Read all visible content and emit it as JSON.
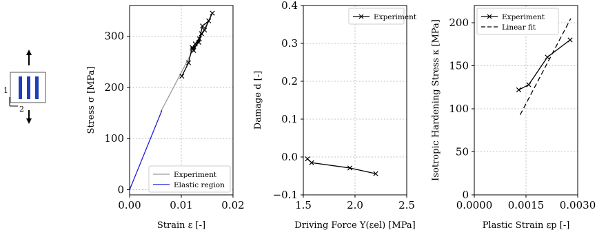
{
  "specimen": {
    "direction_1": "1",
    "direction_2": "2",
    "stripe_color": "#1f3fb8"
  },
  "chart_data": [
    {
      "type": "line",
      "xlabel": "Strain ε [-]",
      "ylabel": "Stress σ [MPa]",
      "xlim": [
        0,
        0.02
      ],
      "ylim": [
        -10,
        360
      ],
      "xticks": [
        0,
        0.01,
        0.02
      ],
      "xtick_labels": [
        "0.00",
        "0.01",
        "0.02"
      ],
      "yticks": [
        0,
        100,
        200,
        300
      ],
      "ytick_labels": [
        "0",
        "100",
        "200",
        "300"
      ],
      "grid": true,
      "legend": "bottom-right",
      "series": [
        {
          "name": "Experiment",
          "color": "#9a9a9a",
          "marker": "none",
          "x": [
            0.006,
            0.016
          ],
          "y": [
            152,
            345
          ]
        },
        {
          "name": "Elastic region",
          "color": "#1f1fd0",
          "marker": "none",
          "x": [
            0,
            0.00625
          ],
          "y": [
            0,
            155
          ]
        },
        {
          "name": "",
          "color": "#000000",
          "marker": "x",
          "x": [
            0.0101,
            0.0114,
            0.0121,
            0.0124,
            0.0135,
            0.0141,
            0.0153,
            0.016,
            0.0145,
            0.0127,
            0.0122,
            0.0134,
            0.0139
          ],
          "y": [
            222,
            248,
            278,
            272,
            295,
            320,
            330,
            345,
            312,
            285,
            275,
            288,
            305
          ]
        }
      ]
    },
    {
      "type": "line",
      "xlabel": "Driving Force Y(εel) [MPa]",
      "ylabel": "Damage d [-]",
      "xlim": [
        1.5,
        2.5
      ],
      "ylim": [
        -0.1,
        0.4
      ],
      "xticks": [
        1.5,
        2.0,
        2.5
      ],
      "xtick_labels": [
        "1.5",
        "2.0",
        "2.5"
      ],
      "yticks": [
        -0.1,
        0.0,
        0.1,
        0.2,
        0.3,
        0.4
      ],
      "ytick_labels": [
        "−0.1",
        "0.0",
        "0.1",
        "0.2",
        "0.3",
        "0.4"
      ],
      "grid": true,
      "legend": "top-right",
      "series": [
        {
          "name": "Experiment",
          "color": "#000000",
          "marker": "x",
          "x": [
            1.54,
            1.58,
            1.95,
            2.2
          ],
          "y": [
            -0.005,
            -0.015,
            -0.029,
            -0.044
          ]
        }
      ]
    },
    {
      "type": "line",
      "xlabel": "Plastic Strain εp [-]",
      "ylabel": "Isotropic Hardening Stress κ [MPa]",
      "xlim": [
        0,
        0.003
      ],
      "ylim": [
        0,
        220
      ],
      "xticks": [
        0,
        0.0015,
        0.003
      ],
      "xtick_labels": [
        "0.0000",
        "0.0015",
        "0.0030"
      ],
      "yticks": [
        0,
        50,
        100,
        150,
        200
      ],
      "ytick_labels": [
        "0",
        "50",
        "100",
        "150",
        "200"
      ],
      "grid": true,
      "legend": "top-left",
      "series": [
        {
          "name": "Experiment",
          "color": "#000000",
          "marker": "x",
          "dash": "none",
          "x": [
            0.00129,
            0.00158,
            0.00212,
            0.00278
          ],
          "y": [
            122,
            128,
            160,
            180
          ]
        },
        {
          "name": "Linear fit",
          "color": "#000000",
          "marker": "none",
          "dash": "dashed",
          "x": [
            0.00133,
            0.0028
          ],
          "y": [
            93,
            205
          ]
        }
      ]
    }
  ]
}
